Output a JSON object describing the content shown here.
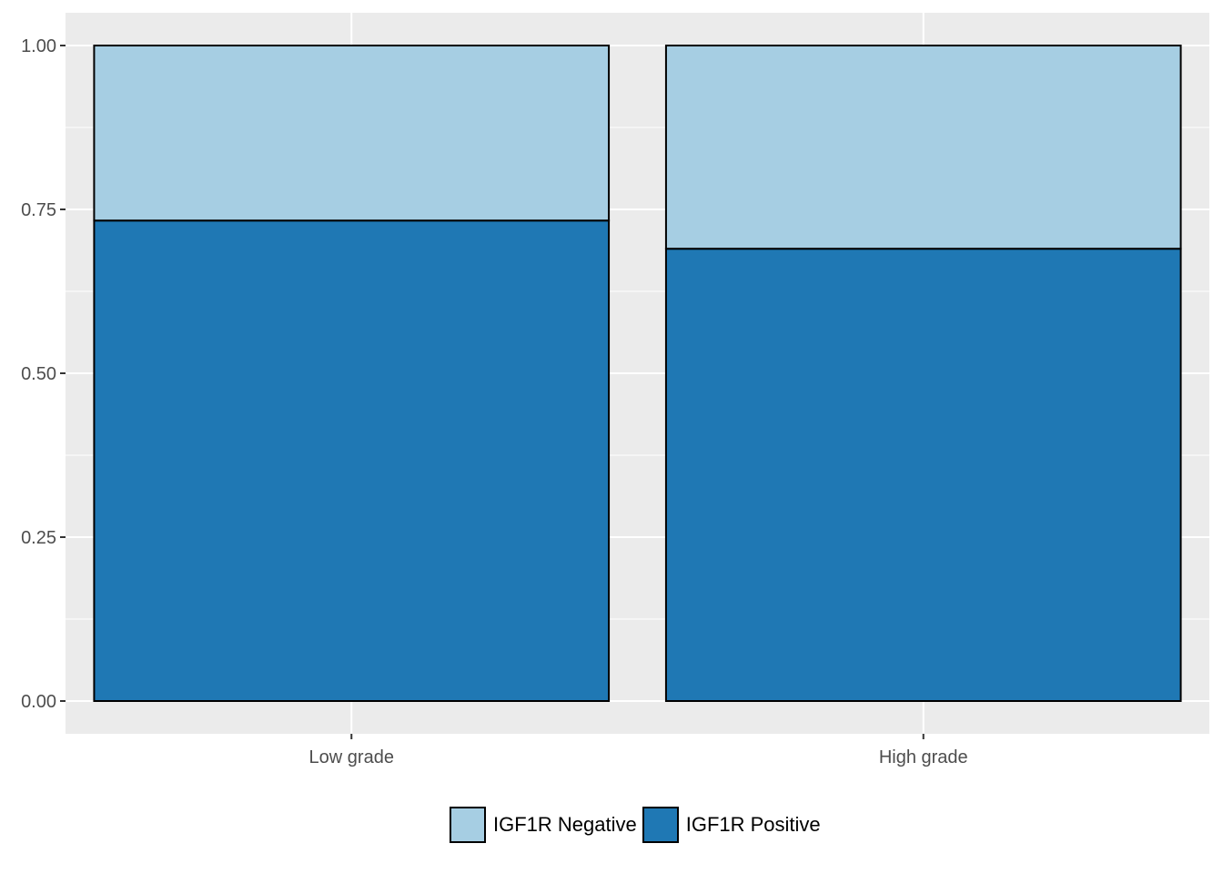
{
  "chart_data": {
    "type": "bar",
    "stacked": true,
    "categories": [
      "Low grade",
      "High grade"
    ],
    "series": [
      {
        "name": "IGF1R Positive",
        "color": "#1f78b4",
        "values": [
          0.733,
          0.69
        ]
      },
      {
        "name": "IGF1R Negative",
        "color": "#a6cee3",
        "values": [
          0.267,
          0.31
        ]
      }
    ],
    "ylim": [
      -0.05,
      1.05
    ],
    "yticks": [
      0.0,
      0.25,
      0.5,
      0.75,
      1.0
    ],
    "ytick_labels": [
      "0.00",
      "0.25",
      "0.50",
      "0.75",
      "1.00"
    ],
    "title": "",
    "xlabel": "",
    "ylabel": "",
    "grid": true,
    "legend_position": "bottom",
    "panel_background": "#ebebeb",
    "legend": [
      {
        "label": "IGF1R Negative",
        "color": "#a6cee3"
      },
      {
        "label": "IGF1R Positive",
        "color": "#1f78b4"
      }
    ]
  }
}
